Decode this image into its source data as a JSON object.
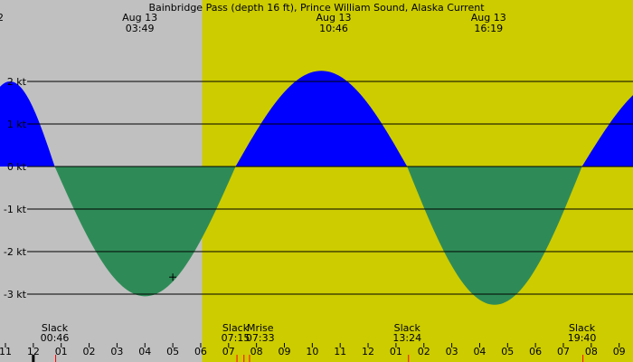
{
  "chart_data": {
    "type": "area",
    "title": "Bainbridge Pass (depth 16 ft), Prince William Sound, Alaska Current",
    "unit": "kt",
    "ylim": [
      -3.7,
      3.9
    ],
    "xlim": [
      23.0,
      46.0
    ],
    "yticks": [
      2,
      1,
      0,
      -1,
      -2,
      -3
    ],
    "ytick_labels": [
      "2 kt",
      "1 kt",
      "0 kt",
      "-1 kt",
      "-2 kt",
      "-3 kt"
    ],
    "night_until_hour": 30.05,
    "left_edge_label": "2",
    "x_hour_ticks": [
      23,
      24,
      25,
      26,
      27,
      28,
      29,
      30,
      31,
      32,
      33,
      34,
      35,
      36,
      37,
      38,
      39,
      40,
      41,
      42,
      43,
      44,
      45,
      46
    ],
    "x_hour_labels": [
      "11",
      "12",
      "01",
      "02",
      "03",
      "04",
      "05",
      "06",
      "07",
      "08",
      "09",
      "10",
      "11",
      "12",
      "01",
      "02",
      "03",
      "04",
      "05",
      "06",
      "07",
      "08",
      "09",
      "10"
    ],
    "extremes": [
      {
        "date": "Aug 13",
        "time": "03:49",
        "hour": 27.817,
        "value": -3.05
      },
      {
        "date": "Aug 13",
        "time": "10:46",
        "hour": 34.767,
        "value": 2.25
      },
      {
        "date": "Aug 13",
        "time": "16:19",
        "hour": 40.317,
        "value": -3.25
      }
    ],
    "slack": [
      {
        "label": "Slack",
        "time": "00:46",
        "hour": 24.767
      },
      {
        "label": "Slack",
        "time": "07:15",
        "hour": 31.25
      },
      {
        "label": "Slack",
        "time": "13:24",
        "hour": 37.4
      },
      {
        "label": "Slack",
        "time": "19:40",
        "hour": 43.667
      }
    ],
    "moonrise": {
      "label": "Mrise",
      "time": "07:33",
      "hour": 31.55
    },
    "red_marks_hours": [
      24.8,
      31.3,
      31.55,
      31.75,
      37.45,
      43.7
    ],
    "current_marker": {
      "hour": 29.0,
      "value": -2.6
    },
    "colors": {
      "flood": "#0000ff",
      "ebb": "#2e8b57",
      "day": "#cccc00",
      "night": "#c0c0c0"
    }
  }
}
